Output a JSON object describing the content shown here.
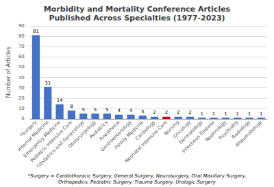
{
  "chart_data": {
    "type": "bar",
    "title": "Morbidity and Mortality Conference Articles\nPublished Across Specialties (1977-2023)",
    "ylabel": "Number of Articles",
    "categories": [
      "*Surgery",
      "Internal Medicine",
      "Emergency Medicine",
      "Pediatric Intensive Care",
      "Obstetrics and Gynecology",
      "Otolaryngology",
      "Pediatrics",
      "Anesthesia",
      "Gastroenterology",
      "Family Medicine",
      "Cardiology",
      "Neonatal Intensive Care",
      "Nursing",
      "Oncology",
      "Dermatology",
      "Infectious Disease",
      "Nephrology",
      "Psychiatry",
      "Radiology",
      "Rheumatology"
    ],
    "values": [
      81,
      31,
      14,
      8,
      5,
      5,
      5,
      4,
      4,
      3,
      2,
      2,
      2,
      2,
      1,
      1,
      1,
      1,
      1,
      1
    ],
    "colors": [
      "#4472C4",
      "#4472C4",
      "#4472C4",
      "#4472C4",
      "#4472C4",
      "#4472C4",
      "#4472C4",
      "#4472C4",
      "#4472C4",
      "#4472C4",
      "#4472C4",
      "#C00000",
      "#4472C4",
      "#4472C4",
      "#4472C4",
      "#4472C4",
      "#4472C4",
      "#4472C4",
      "#4472C4",
      "#4472C4"
    ],
    "ylim": [
      0,
      90
    ],
    "yticks": [
      0,
      10,
      20,
      30,
      40,
      50,
      60,
      70,
      80,
      90
    ],
    "grid": true,
    "data_labels": true,
    "annotations": [
      "*Surgery = Cardiothoracic Surgery, General Surgery, Neurosurgery, Oral Maxillary Surgery,",
      "Orthopedics, Pediatric Surgery, Trauma Surgery, Urologic Surgery"
    ]
  }
}
